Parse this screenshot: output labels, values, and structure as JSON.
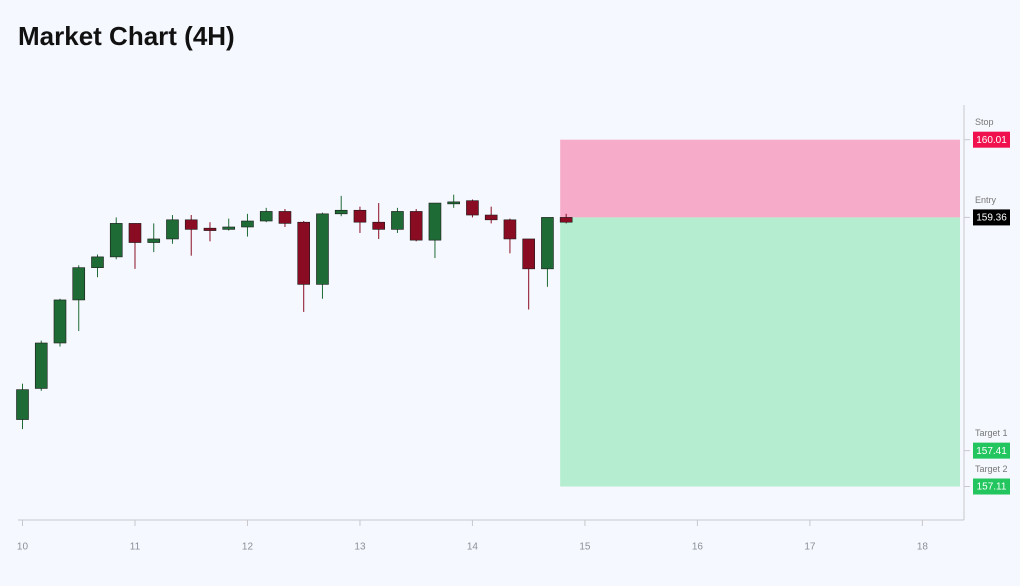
{
  "chart_data": {
    "type": "candlestick",
    "title": "Market Chart (4H)",
    "x": [
      10,
      10.1667,
      10.3333,
      10.5,
      10.6667,
      10.8333,
      11,
      11.1667,
      11.3333,
      11.5,
      11.6667,
      11.8333,
      12,
      12.1667,
      12.3333,
      12.5,
      12.6667,
      12.8333,
      13,
      13.1667,
      13.3333,
      13.5,
      13.6667,
      13.8333,
      14,
      14.1667,
      14.3333,
      14.5,
      14.6667,
      14.8333
    ],
    "open": [
      157.67,
      157.93,
      158.31,
      158.67,
      158.94,
      159.03,
      159.31,
      159.15,
      159.18,
      159.34,
      159.27,
      159.26,
      159.28,
      159.33,
      159.41,
      159.32,
      158.8,
      159.39,
      159.42,
      159.32,
      159.26,
      159.41,
      159.17,
      159.48,
      159.5,
      159.38,
      159.34,
      159.18,
      158.93,
      159.36
    ],
    "high": [
      157.97,
      158.33,
      158.68,
      158.96,
      159.05,
      159.36,
      159.31,
      159.31,
      159.38,
      159.38,
      159.32,
      159.35,
      159.39,
      159.44,
      159.43,
      159.33,
      159.4,
      159.54,
      159.45,
      159.48,
      159.44,
      159.43,
      159.48,
      159.55,
      159.51,
      159.45,
      159.35,
      159.18,
      159.36,
      159.39
    ],
    "low": [
      157.59,
      157.91,
      158.28,
      158.41,
      158.86,
      159.01,
      158.93,
      159.07,
      159.14,
      159.04,
      159.16,
      159.25,
      159.2,
      159.32,
      159.28,
      158.57,
      158.68,
      159.37,
      159.23,
      159.18,
      159.23,
      159.16,
      159.02,
      159.44,
      159.36,
      159.31,
      159.06,
      158.59,
      158.78,
      159.31
    ],
    "close": [
      157.92,
      158.31,
      158.67,
      158.94,
      159.03,
      159.31,
      159.15,
      159.18,
      159.34,
      159.26,
      159.25,
      159.28,
      159.33,
      159.41,
      159.31,
      158.8,
      159.39,
      159.42,
      159.32,
      159.26,
      159.41,
      159.17,
      159.48,
      159.49,
      159.38,
      159.34,
      159.18,
      158.93,
      159.36,
      159.32
    ],
    "up_color": "#1f6b36",
    "down_color": "#8a0c22",
    "levels": [
      {
        "label": "Stop",
        "value": 160.01,
        "color": "#f0104e"
      },
      {
        "label": "Entry",
        "value": 159.36,
        "color": "#000000"
      },
      {
        "label": "Target 1",
        "value": 157.41,
        "color": "#22c55e"
      },
      {
        "label": "Target 2",
        "value": 157.11,
        "color": "#22c55e"
      }
    ],
    "stop_zone_color": "#f6abc9",
    "target_zone_color": "#b4edcf",
    "xlim": [
      9.96,
      18.37
    ],
    "xticks": [
      10,
      11,
      12,
      13,
      14,
      15,
      16,
      17,
      18
    ],
    "ylim": [
      156.83,
      160.3
    ]
  }
}
